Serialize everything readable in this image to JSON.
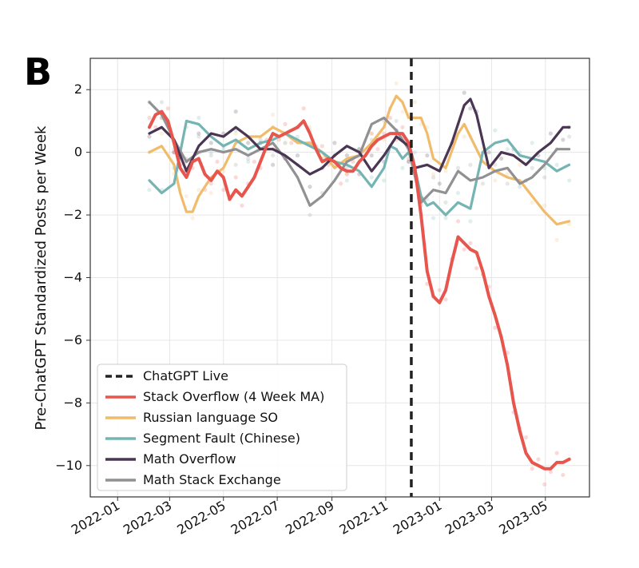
{
  "panel_label": "B",
  "chart_data": {
    "type": "line",
    "title": "",
    "xlabel": "",
    "ylabel": "Pre-ChatGPT Standardized Posts per Week",
    "xlim": [
      "2021-12-01",
      "2023-06-20"
    ],
    "ylim": [
      -11,
      3
    ],
    "x_ticks": [
      "2022-01",
      "2022-03",
      "2022-05",
      "2022-07",
      "2022-09",
      "2022-11",
      "2023-01",
      "2023-03",
      "2023-05"
    ],
    "y_ticks": [
      2,
      0,
      -2,
      -4,
      -6,
      -8,
      -10
    ],
    "grid": true,
    "legend_position": "lower-left",
    "vline": {
      "label": "ChatGPT Live",
      "x": "2022-11-30",
      "color": "#222222",
      "style": "dashed"
    },
    "series": [
      {
        "name": "Stack Overflow (4 Week MA)",
        "color": "#e8554d",
        "x": [
          "2022-02-06",
          "2022-02-13",
          "2022-02-20",
          "2022-02-27",
          "2022-03-06",
          "2022-03-13",
          "2022-03-20",
          "2022-03-27",
          "2022-04-03",
          "2022-04-10",
          "2022-04-17",
          "2022-04-24",
          "2022-05-01",
          "2022-05-08",
          "2022-05-15",
          "2022-05-22",
          "2022-05-29",
          "2022-06-05",
          "2022-06-12",
          "2022-06-19",
          "2022-06-26",
          "2022-07-03",
          "2022-07-10",
          "2022-07-17",
          "2022-07-24",
          "2022-07-31",
          "2022-08-07",
          "2022-08-14",
          "2022-08-21",
          "2022-08-28",
          "2022-09-04",
          "2022-09-11",
          "2022-09-18",
          "2022-09-25",
          "2022-10-02",
          "2022-10-09",
          "2022-10-16",
          "2022-10-23",
          "2022-10-30",
          "2022-11-06",
          "2022-11-13",
          "2022-11-20",
          "2022-11-27",
          "2022-12-04",
          "2022-12-11",
          "2022-12-18",
          "2022-12-25",
          "2023-01-01",
          "2023-01-08",
          "2023-01-15",
          "2023-01-22",
          "2023-01-29",
          "2023-02-05",
          "2023-02-12",
          "2023-02-19",
          "2023-02-26",
          "2023-03-05",
          "2023-03-12",
          "2023-03-19",
          "2023-03-26",
          "2023-04-02",
          "2023-04-09",
          "2023-04-16",
          "2023-04-23",
          "2023-04-30",
          "2023-05-07",
          "2023-05-14",
          "2023-05-21",
          "2023-05-28"
        ],
        "values": [
          0.8,
          1.2,
          1.3,
          1.0,
          0.3,
          -0.5,
          -0.8,
          -0.3,
          -0.2,
          -0.7,
          -0.9,
          -0.6,
          -0.8,
          -1.5,
          -1.2,
          -1.4,
          -1.1,
          -0.8,
          -0.3,
          0.2,
          0.6,
          0.5,
          0.6,
          0.7,
          0.8,
          1.0,
          0.6,
          0.1,
          -0.3,
          -0.2,
          -0.3,
          -0.5,
          -0.6,
          -0.6,
          -0.3,
          -0.1,
          0.2,
          0.4,
          0.5,
          0.6,
          0.6,
          0.6,
          0.3,
          -0.5,
          -2.0,
          -3.8,
          -4.6,
          -4.8,
          -4.4,
          -3.5,
          -2.7,
          -2.9,
          -3.1,
          -3.2,
          -3.8,
          -4.6,
          -5.2,
          -5.9,
          -6.8,
          -8.0,
          -8.9,
          -9.6,
          -9.9,
          -10.0,
          -10.1,
          -10.1,
          -9.9,
          -9.9,
          -9.8
        ]
      },
      {
        "name": "Russian language SO",
        "color": "#f0bc6c",
        "x": [
          "2022-02-06",
          "2022-02-20",
          "2022-03-06",
          "2022-03-13",
          "2022-03-20",
          "2022-03-27",
          "2022-04-03",
          "2022-04-17",
          "2022-05-01",
          "2022-05-15",
          "2022-05-29",
          "2022-06-12",
          "2022-06-26",
          "2022-07-10",
          "2022-07-24",
          "2022-08-07",
          "2022-08-21",
          "2022-09-04",
          "2022-09-18",
          "2022-10-02",
          "2022-10-16",
          "2022-10-30",
          "2022-11-06",
          "2022-11-13",
          "2022-11-20",
          "2022-11-27",
          "2022-12-04",
          "2022-12-11",
          "2022-12-18",
          "2022-12-25",
          "2023-01-08",
          "2023-01-22",
          "2023-01-29",
          "2023-02-05",
          "2023-02-19",
          "2023-03-05",
          "2023-03-19",
          "2023-04-02",
          "2023-04-16",
          "2023-04-30",
          "2023-05-14",
          "2023-05-28"
        ],
        "values": [
          0.0,
          0.2,
          -0.4,
          -1.3,
          -1.9,
          -1.9,
          -1.4,
          -0.8,
          -0.5,
          0.3,
          0.5,
          0.5,
          0.8,
          0.6,
          0.3,
          0.3,
          0.0,
          -0.5,
          -0.2,
          -0.1,
          0.3,
          0.8,
          1.4,
          1.8,
          1.6,
          1.1,
          1.1,
          1.1,
          0.6,
          -0.2,
          -0.5,
          0.6,
          0.9,
          0.5,
          -0.3,
          -0.6,
          -0.8,
          -0.9,
          -1.4,
          -1.9,
          -2.3,
          -2.2
        ]
      },
      {
        "name": "Segment Fault (Chinese)",
        "color": "#74b5b3",
        "x": [
          "2022-02-06",
          "2022-02-20",
          "2022-03-06",
          "2022-03-20",
          "2022-04-03",
          "2022-04-17",
          "2022-05-01",
          "2022-05-15",
          "2022-05-29",
          "2022-06-12",
          "2022-06-26",
          "2022-07-10",
          "2022-07-24",
          "2022-08-07",
          "2022-08-21",
          "2022-09-04",
          "2022-09-18",
          "2022-10-02",
          "2022-10-16",
          "2022-10-30",
          "2022-11-06",
          "2022-11-13",
          "2022-11-20",
          "2022-11-27",
          "2022-12-04",
          "2022-12-11",
          "2022-12-18",
          "2022-12-25",
          "2023-01-08",
          "2023-01-22",
          "2023-02-05",
          "2023-02-19",
          "2023-03-05",
          "2023-03-19",
          "2023-04-02",
          "2023-04-16",
          "2023-04-30",
          "2023-05-14",
          "2023-05-28"
        ],
        "values": [
          -0.9,
          -1.3,
          -1.0,
          1.0,
          0.9,
          0.5,
          0.2,
          0.4,
          0.1,
          0.3,
          0.4,
          0.6,
          0.4,
          0.2,
          0.0,
          -0.3,
          -0.4,
          -0.6,
          -1.1,
          -0.5,
          0.2,
          0.1,
          -0.2,
          0.0,
          -0.5,
          -1.4,
          -1.7,
          -1.6,
          -2.0,
          -1.6,
          -1.8,
          0.0,
          0.3,
          0.4,
          -0.1,
          -0.2,
          -0.3,
          -0.6,
          -0.4
        ]
      },
      {
        "name": "Math Overflow",
        "color": "#4a3552",
        "x": [
          "2022-02-06",
          "2022-02-20",
          "2022-03-06",
          "2022-03-20",
          "2022-04-03",
          "2022-04-17",
          "2022-05-01",
          "2022-05-15",
          "2022-05-29",
          "2022-06-12",
          "2022-06-26",
          "2022-07-10",
          "2022-07-24",
          "2022-08-07",
          "2022-08-21",
          "2022-09-04",
          "2022-09-18",
          "2022-10-02",
          "2022-10-16",
          "2022-10-30",
          "2022-11-13",
          "2022-11-27",
          "2022-12-04",
          "2022-12-18",
          "2023-01-01",
          "2023-01-15",
          "2023-01-29",
          "2023-02-05",
          "2023-02-12",
          "2023-02-26",
          "2023-03-12",
          "2023-03-26",
          "2023-04-09",
          "2023-04-23",
          "2023-05-07",
          "2023-05-21",
          "2023-05-28"
        ],
        "values": [
          0.6,
          0.8,
          0.4,
          -0.6,
          0.2,
          0.6,
          0.5,
          0.8,
          0.5,
          0.1,
          0.1,
          -0.1,
          -0.4,
          -0.7,
          -0.5,
          -0.1,
          0.2,
          0.0,
          -0.6,
          -0.1,
          0.5,
          0.2,
          -0.5,
          -0.4,
          -0.6,
          0.3,
          1.5,
          1.7,
          1.2,
          -0.5,
          0.0,
          -0.1,
          -0.4,
          0.0,
          0.3,
          0.8,
          0.8
        ]
      },
      {
        "name": "Math Stack Exchange",
        "color": "#919194",
        "x": [
          "2022-02-06",
          "2022-02-20",
          "2022-03-06",
          "2022-03-20",
          "2022-04-03",
          "2022-04-17",
          "2022-05-01",
          "2022-05-15",
          "2022-05-29",
          "2022-06-12",
          "2022-06-26",
          "2022-07-10",
          "2022-07-24",
          "2022-08-07",
          "2022-08-21",
          "2022-09-04",
          "2022-09-18",
          "2022-10-02",
          "2022-10-16",
          "2022-10-30",
          "2022-11-13",
          "2022-11-27",
          "2022-12-11",
          "2022-12-25",
          "2023-01-08",
          "2023-01-22",
          "2023-02-05",
          "2023-02-19",
          "2023-03-05",
          "2023-03-19",
          "2023-04-02",
          "2023-04-16",
          "2023-04-30",
          "2023-05-14",
          "2023-05-28"
        ],
        "values": [
          1.6,
          1.2,
          0.4,
          -0.3,
          0.0,
          0.1,
          0.0,
          0.1,
          -0.1,
          0.1,
          0.3,
          -0.2,
          -0.8,
          -1.7,
          -1.4,
          -0.9,
          -0.3,
          -0.1,
          0.9,
          1.1,
          0.7,
          0.1,
          -1.6,
          -1.2,
          -1.3,
          -0.6,
          -0.9,
          -0.8,
          -0.6,
          -0.5,
          -1.0,
          -0.8,
          -0.4,
          0.1,
          0.1
        ]
      }
    ]
  }
}
